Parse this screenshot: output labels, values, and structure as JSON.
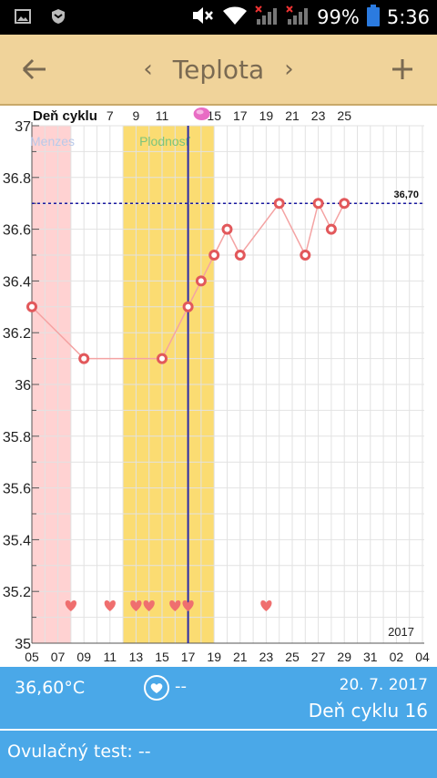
{
  "status_bar": {
    "battery": "99%",
    "time": "5:36"
  },
  "app_bar": {
    "title": "Teplota",
    "prev": "‹",
    "next": "›"
  },
  "chart_data": {
    "type": "line",
    "title": "",
    "header_label": "Deň cyklu",
    "year_label": "2017",
    "ylim": [
      35,
      37
    ],
    "y_ticks": [
      "35",
      "35.2",
      "35.4",
      "35.6",
      "35.8",
      "36",
      "36.2",
      "36.4",
      "36.6",
      "36.8",
      "37"
    ],
    "x_tick_labels": [
      "05",
      "07",
      "09",
      "11",
      "13",
      "15",
      "17",
      "19",
      "21",
      "23",
      "25",
      "27",
      "29",
      "31",
      "02",
      "04"
    ],
    "cycle_day_labels": [
      "7",
      "9",
      "11",
      "15",
      "17",
      "19",
      "21",
      "23",
      "25"
    ],
    "cycle_day_positions": [
      7,
      9,
      11,
      15,
      17,
      19,
      21,
      23,
      25
    ],
    "ovulation_day": 13,
    "current_day": 16,
    "menstruation": {
      "label": "Menzes",
      "days": [
        0,
        3
      ]
    },
    "fertile": {
      "label": "Plodnosť",
      "days": [
        7,
        14
      ]
    },
    "coverline": {
      "value": 36.7,
      "label": "36,70"
    },
    "points": [
      {
        "day": 0,
        "temp": 36.3
      },
      {
        "day": 4,
        "temp": 36.1
      },
      {
        "day": 10,
        "temp": 36.1
      },
      {
        "day": 12,
        "temp": 36.3
      },
      {
        "day": 13,
        "temp": 36.4
      },
      {
        "day": 14,
        "temp": 36.5
      },
      {
        "day": 15,
        "temp": 36.6
      },
      {
        "day": 16,
        "temp": 36.5
      },
      {
        "day": 19,
        "temp": 36.7
      },
      {
        "day": 21,
        "temp": 36.5
      },
      {
        "day": 22,
        "temp": 36.7
      },
      {
        "day": 23,
        "temp": 36.6
      },
      {
        "day": 24,
        "temp": 36.7
      }
    ],
    "intercourse_days": [
      3,
      6,
      8,
      9,
      11,
      12,
      18
    ],
    "colors": {
      "line": "#f4a3a3",
      "point": "#e2585b",
      "menstruation": "#ffd2d2",
      "fertile": "#fbdc72",
      "current_day_line": "#2a2aa8",
      "coverline": "#1a1aa0",
      "heart": "#ef6f6f"
    }
  },
  "info": {
    "temperature": "36,60°C",
    "heart_value": "--",
    "date": "20. 7. 2017",
    "cycle_day": "Deň cyklu 16"
  },
  "ovulation": {
    "label": "Ovulačný test: --"
  }
}
